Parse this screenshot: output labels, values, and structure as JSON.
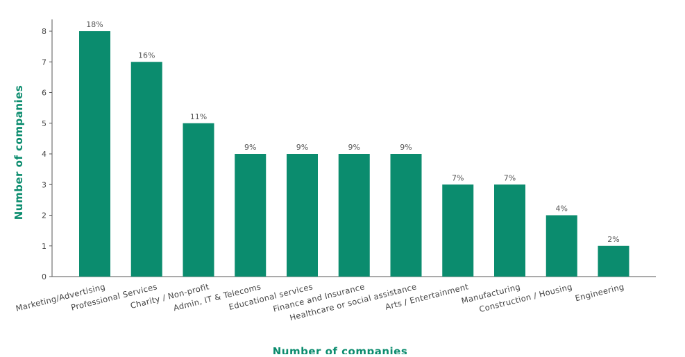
{
  "colors": {
    "bar": "#0b8c6e",
    "axis_title": "#0b8c6e",
    "axis_line": "#555555",
    "title": "#2f5d8a"
  },
  "chart_data": {
    "type": "bar",
    "title": "",
    "xlabel": "Number of companies",
    "ylabel": "Number of companies",
    "categories": [
      "Marketing/Advertising",
      "Professional Services",
      "Charity / Non-profit",
      "Admin, IT & Telecoms",
      "Educational services",
      "Finance and Insurance",
      "Healthcare or social assistance",
      "Arts / Entertainment",
      "Manufacturing",
      "Construction / Housing",
      "Engineering"
    ],
    "values": [
      8,
      7,
      5,
      4,
      4,
      4,
      4,
      3,
      3,
      2,
      1
    ],
    "data_labels": [
      "18%",
      "16%",
      "11%",
      "9%",
      "9%",
      "9%",
      "9%",
      "7%",
      "7%",
      "4%",
      "2%"
    ],
    "ylim": [
      0,
      8
    ],
    "yticks": [
      0,
      1,
      2,
      3,
      4,
      5,
      6,
      7,
      8
    ],
    "grid": false,
    "legend": "none"
  }
}
